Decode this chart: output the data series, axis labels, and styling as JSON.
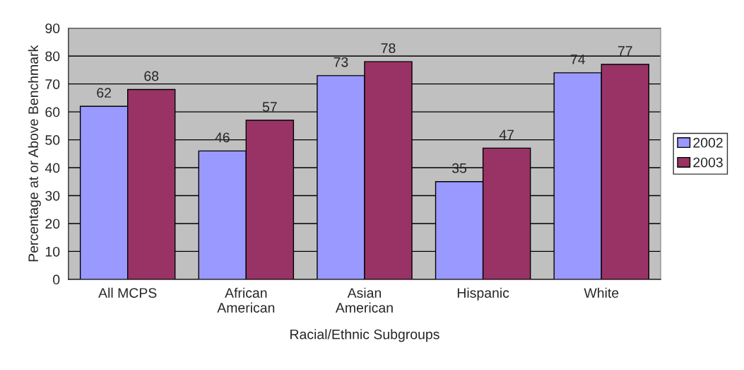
{
  "chart_data": {
    "type": "bar",
    "xlabel": "Racial/Ethnic Subgroups",
    "ylabel": "Percentage at or Above Benchmark",
    "categories": [
      "All MCPS",
      "African\nAmerican",
      "Asian\nAmerican",
      "Hispanic",
      "White"
    ],
    "series": [
      {
        "name": "2002",
        "color": "#9999ff",
        "values": [
          62,
          46,
          73,
          35,
          74
        ]
      },
      {
        "name": "2003",
        "color": "#993366",
        "values": [
          68,
          57,
          78,
          47,
          77
        ]
      }
    ],
    "ylim": [
      0,
      90
    ],
    "yticks": [
      0,
      10,
      20,
      30,
      40,
      50,
      60,
      70,
      80,
      90
    ],
    "grid": "y",
    "legend": "right",
    "data_labels": true
  }
}
